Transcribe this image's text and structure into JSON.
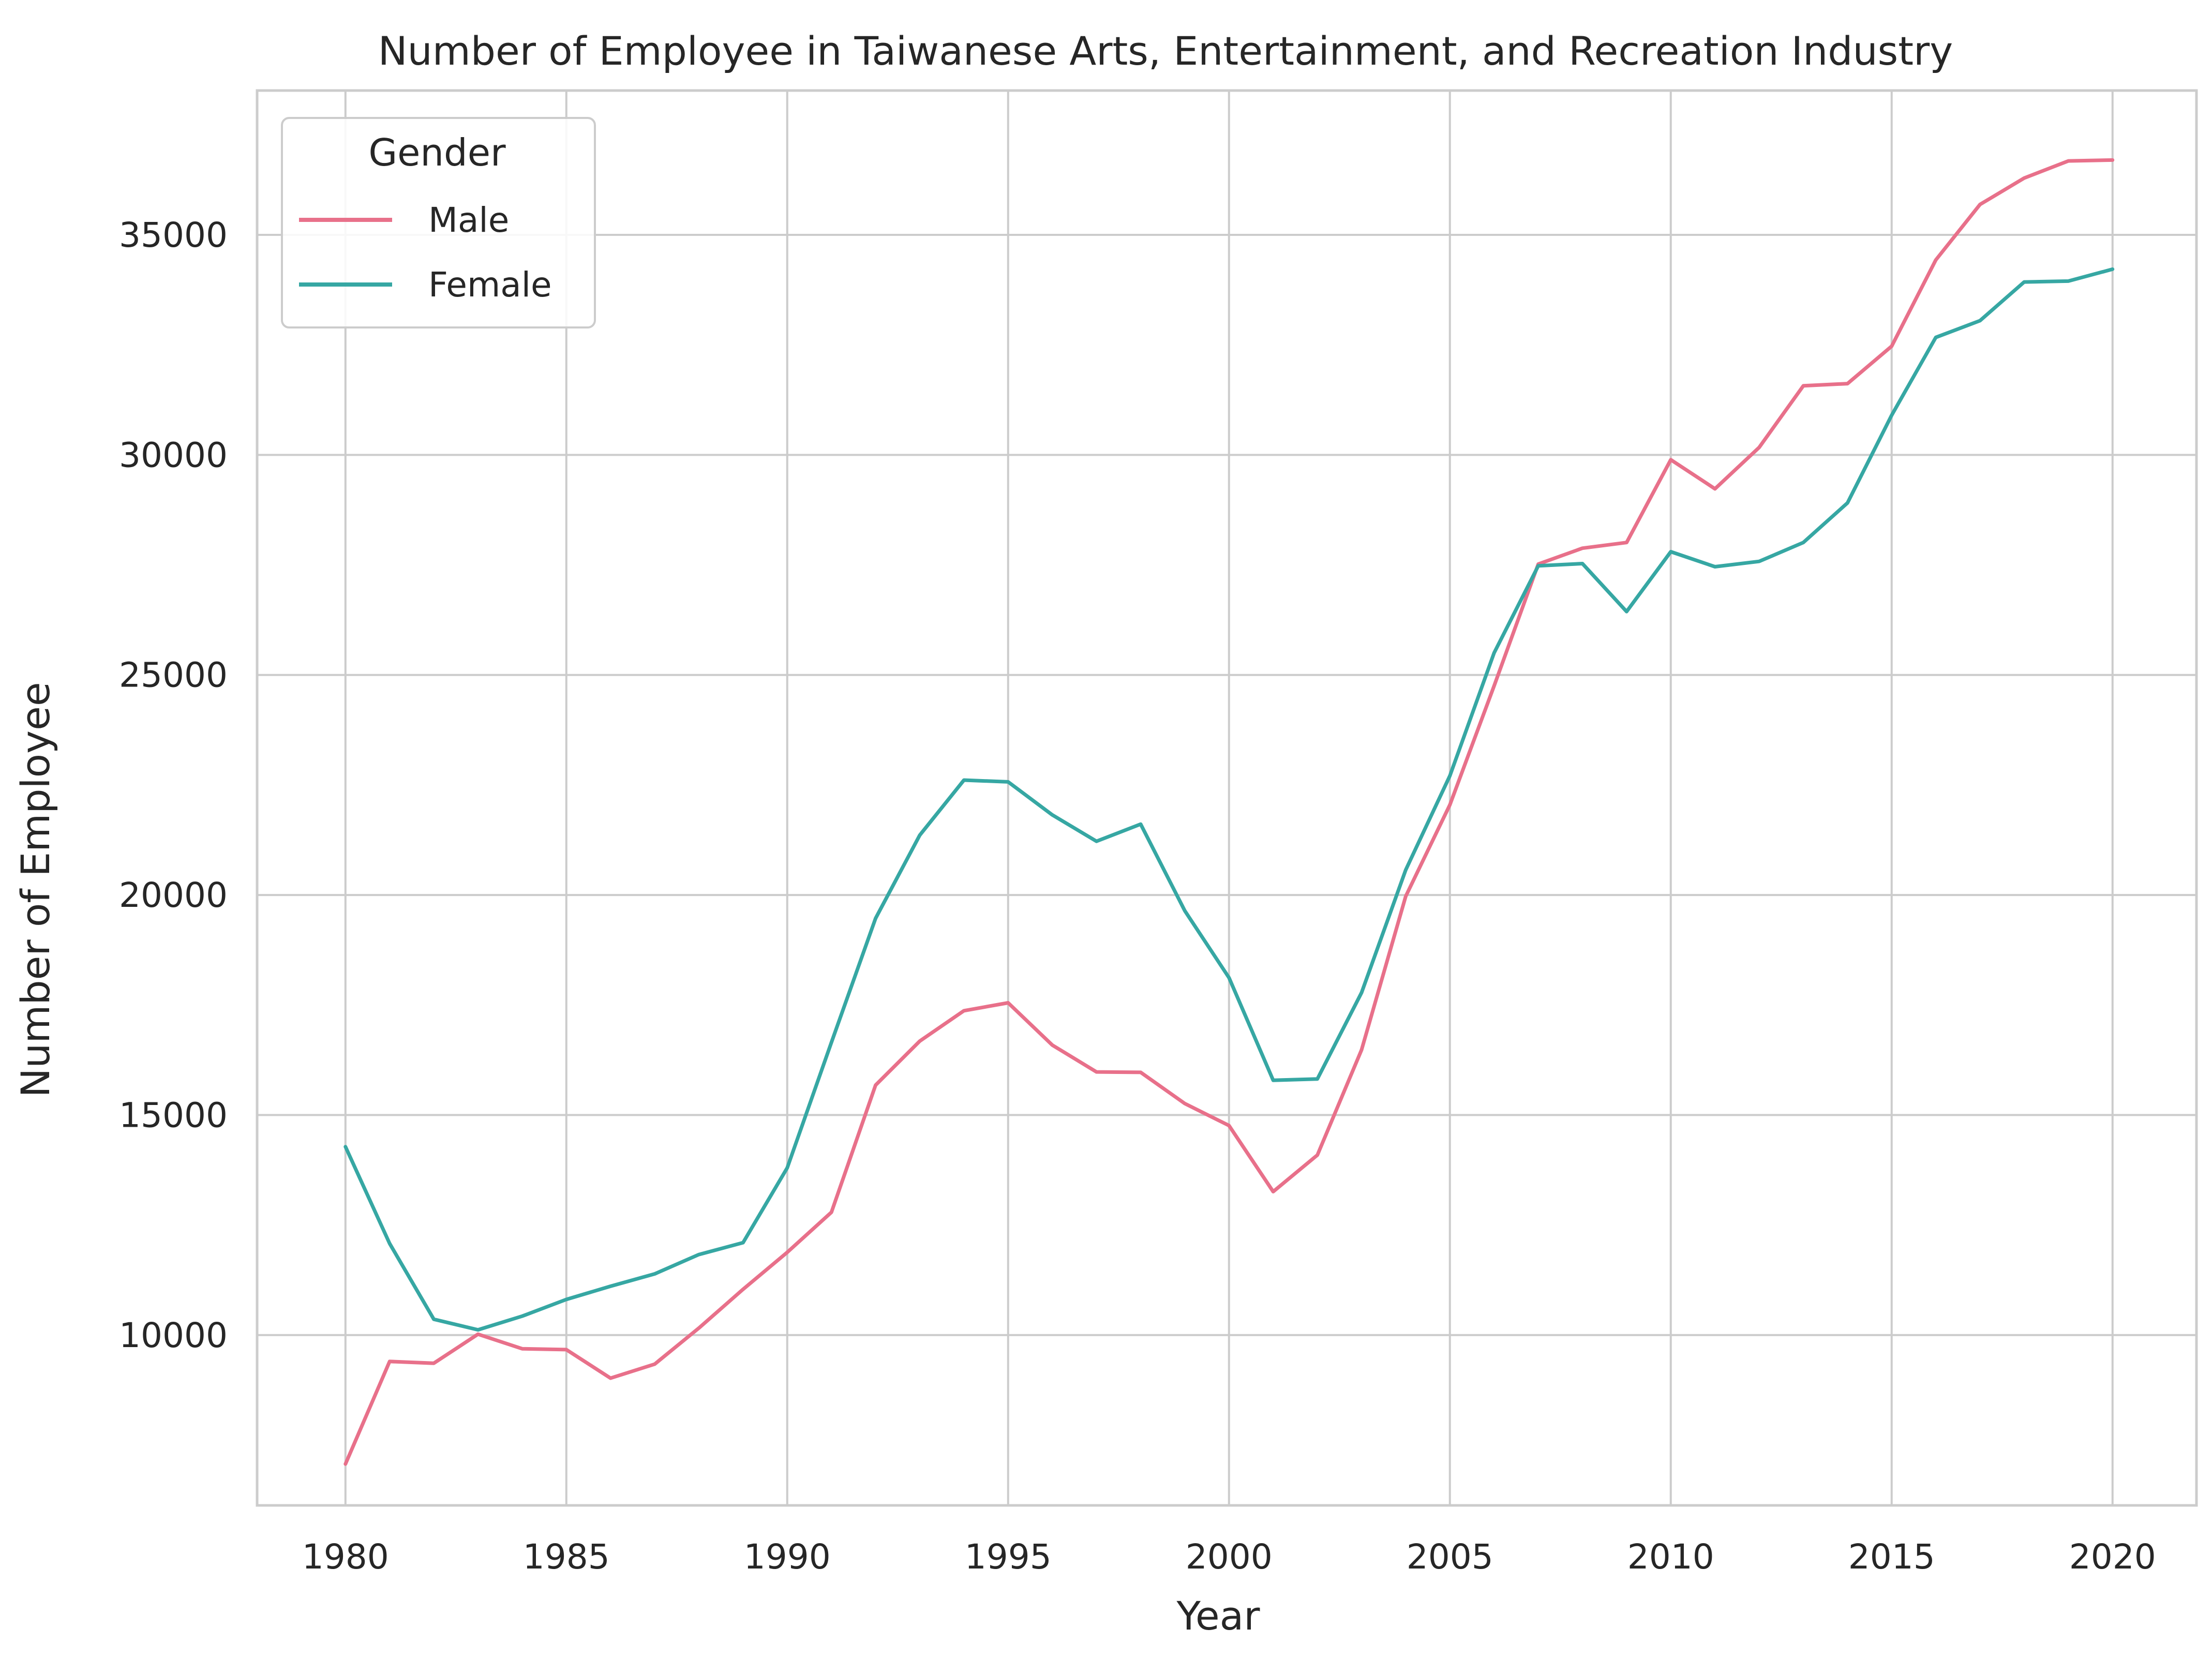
{
  "chart_data": {
    "type": "line",
    "title": "Number of Employee in Taiwanese Arts, Entertainment, and Recreation Industry",
    "xlabel": "Year",
    "ylabel": "Number of Employee",
    "xlim": [
      1978,
      2021.9
    ],
    "ylim": [
      6130,
      38280
    ],
    "xticks": [
      1980,
      1985,
      1990,
      1995,
      2000,
      2005,
      2010,
      2015,
      2020
    ],
    "yticks": [
      10000,
      15000,
      20000,
      25000,
      30000,
      35000
    ],
    "grid": true,
    "legend": {
      "title": "Gender",
      "placement": "top-left"
    },
    "x": [
      1980,
      1981,
      1982,
      1983,
      1984,
      1985,
      1986,
      1987,
      1988,
      1989,
      1990,
      1991,
      1992,
      1993,
      1994,
      1995,
      1996,
      1997,
      1998,
      1999,
      2000,
      2001,
      2002,
      2003,
      2004,
      2005,
      2006,
      2007,
      2008,
      2009,
      2010,
      2011,
      2012,
      2013,
      2014,
      2015,
      2016,
      2017,
      2018,
      2019,
      2020
    ],
    "series": [
      {
        "name": "Male",
        "color": "#e8708a",
        "values": [
          7070,
          9400,
          9360,
          10020,
          9690,
          9670,
          9020,
          9340,
          10160,
          11040,
          11880,
          12790,
          15680,
          16680,
          17370,
          17550,
          16590,
          15980,
          15970,
          15260,
          14760,
          13260,
          14090,
          16480,
          19970,
          22050,
          24750,
          27520,
          27880,
          28010,
          29890,
          29230,
          30170,
          31570,
          31620,
          32470,
          34430,
          35690,
          36290,
          36680,
          36700
        ]
      },
      {
        "name": "Female",
        "color": "#36a7a3",
        "values": [
          14280,
          12080,
          10360,
          10120,
          10430,
          10810,
          11110,
          11390,
          11830,
          12100,
          13800,
          16650,
          19470,
          21360,
          22610,
          22570,
          21820,
          21220,
          21610,
          19640,
          18120,
          15790,
          15820,
          17780,
          20570,
          22710,
          25500,
          27480,
          27530,
          26440,
          27800,
          27460,
          27580,
          28010,
          28910,
          30900,
          32670,
          33050,
          33930,
          33950,
          34220
        ]
      }
    ]
  }
}
